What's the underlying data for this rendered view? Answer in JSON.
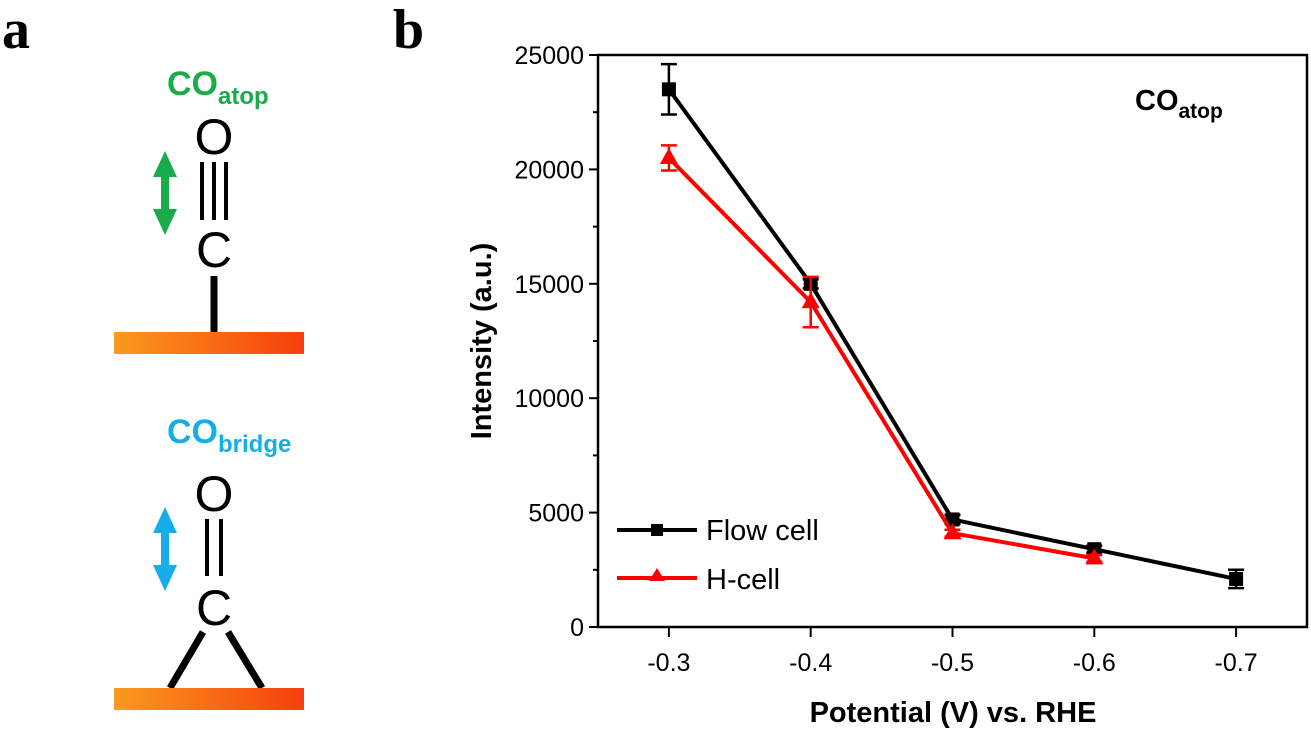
{
  "panel_a": {
    "letter": "a",
    "colors": {
      "atop": "#1aab4b",
      "bridge": "#15aee8",
      "surface_start": "#fb9a1e",
      "surface_end": "#f63f0d"
    },
    "atop": {
      "label_main": "CO",
      "label_sub": "atop",
      "atom_top": "O",
      "atom_bottom": "C",
      "bond": "triple"
    },
    "bridge": {
      "label_main": "CO",
      "label_sub": "bridge",
      "atom_top": "O",
      "atom_bottom": "C",
      "bond": "double"
    },
    "icons": [
      "double-arrow-icon-atop",
      "double-arrow-icon-bridge"
    ]
  },
  "panel_b": {
    "letter": "b"
  },
  "chart_data": {
    "type": "line",
    "title": "",
    "annotation": {
      "main": "CO",
      "sub": "atop",
      "position": "top-right"
    },
    "xlabel": "Potential (V) vs. RHE",
    "ylabel": "Intensity (a.u.)",
    "x": [
      -0.3,
      -0.4,
      -0.5,
      -0.6,
      -0.7
    ],
    "x_tick_labels": [
      "-0.3",
      "-0.4",
      "-0.5",
      "-0.6",
      "-0.7"
    ],
    "xlim": [
      -0.25,
      -0.75
    ],
    "ylim": [
      0,
      25000
    ],
    "y_ticks": [
      0,
      5000,
      10000,
      15000,
      20000,
      25000
    ],
    "y_tick_labels": [
      "0",
      "5000",
      "10000",
      "15000",
      "20000",
      "25000"
    ],
    "y_minor_step": 2500,
    "grid": false,
    "legend_position": "bottom-left",
    "series": [
      {
        "name": "Flow cell",
        "color": "#000000",
        "marker": "square",
        "x": [
          -0.3,
          -0.4,
          -0.5,
          -0.6,
          -0.7
        ],
        "values": [
          23500,
          15000,
          4700,
          3400,
          2100
        ],
        "errors": [
          1100,
          200,
          200,
          150,
          400
        ]
      },
      {
        "name": "H-cell",
        "color": "#ff0000",
        "marker": "triangle",
        "x": [
          -0.3,
          -0.4,
          -0.5,
          -0.6
        ],
        "values": [
          20500,
          14200,
          4100,
          3000
        ],
        "errors": [
          550,
          1100,
          150,
          150
        ]
      }
    ]
  }
}
